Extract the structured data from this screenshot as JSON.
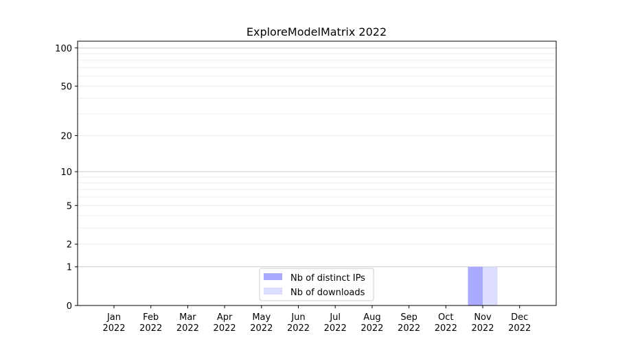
{
  "chart_data": {
    "type": "bar",
    "title": "ExploreModelMatrix 2022",
    "xlabel": "",
    "ylabel": "",
    "yscale": "log(1+y)",
    "ylim": [
      0,
      113
    ],
    "yticks": [
      0,
      1,
      2,
      5,
      10,
      20,
      50,
      100
    ],
    "grid": true,
    "categories": [
      "Jan\n2022",
      "Feb\n2022",
      "Mar\n2022",
      "Apr\n2022",
      "May\n2022",
      "Jun\n2022",
      "Jul\n2022",
      "Aug\n2022",
      "Sep\n2022",
      "Oct\n2022",
      "Nov\n2022",
      "Dec\n2022"
    ],
    "series": [
      {
        "name": "Nb of distinct IPs",
        "color": "#aaaaff",
        "values": [
          0,
          0,
          0,
          0,
          0,
          0,
          0,
          0,
          0,
          0,
          1,
          0
        ]
      },
      {
        "name": "Nb of downloads",
        "color": "#ddddff",
        "values": [
          0,
          0,
          0,
          0,
          0,
          0,
          0,
          0,
          0,
          0,
          1,
          0
        ]
      }
    ],
    "legend_position": "lower-center"
  }
}
